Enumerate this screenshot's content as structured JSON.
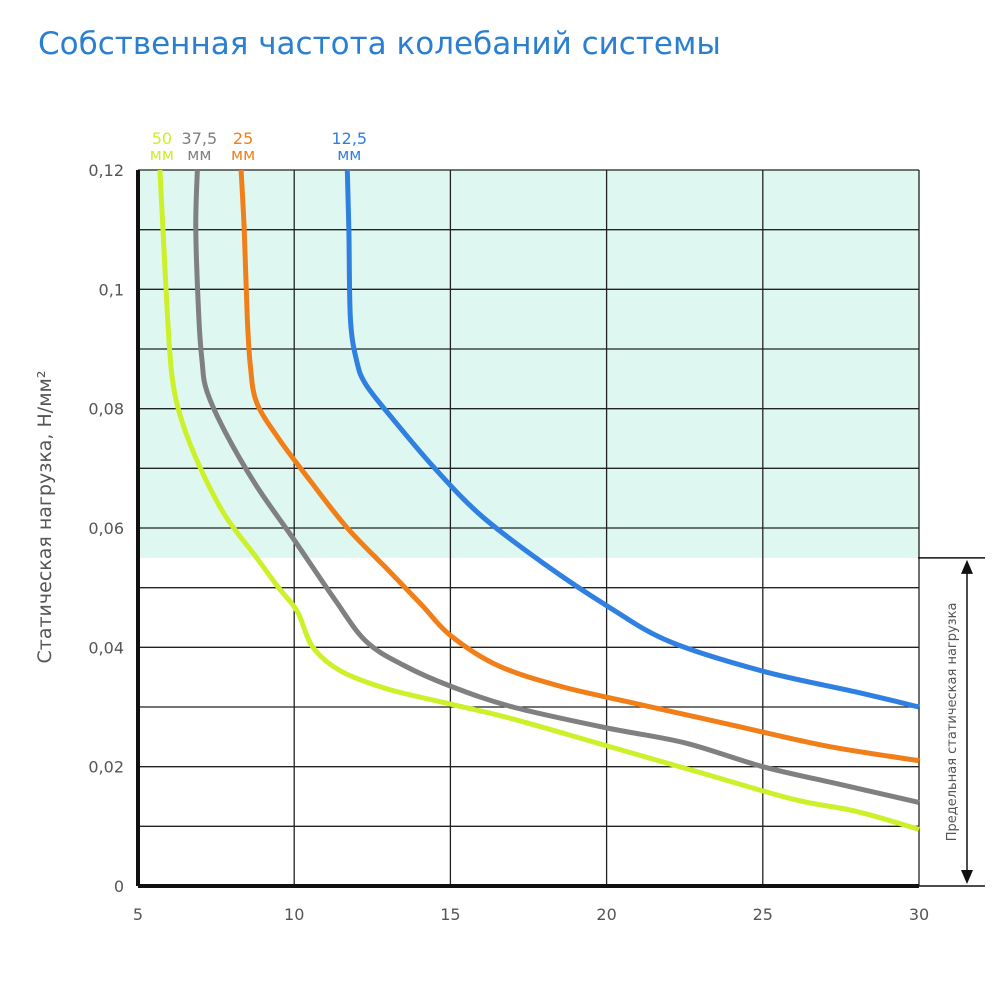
{
  "title": "Собственная частота колебаний системы",
  "colors": {
    "title": "#2a7fd0",
    "zone": "#dff7f1",
    "grid": "#222222"
  },
  "chart_data": {
    "type": "line",
    "title": "Собственная частота колебаний системы",
    "xlabel": "",
    "ylabel": "Статическая нагрузка, Н/мм²",
    "xlim": [
      5,
      30
    ],
    "ylim": [
      0,
      0.12
    ],
    "x_ticks": [
      "5",
      "10",
      "15",
      "20",
      "25",
      "30"
    ],
    "y_ticks": [
      "0",
      "0,02",
      "0,04",
      "0,06",
      "0,08",
      "0,1",
      "0,12"
    ],
    "grid": true,
    "limit_zone": {
      "label": "Предельная статическая нагрузка",
      "y_from": 0.055,
      "y_to": 0.12
    },
    "series": [
      {
        "name": "50",
        "unit": "мм",
        "color": "#ccf02a",
        "points": [
          [
            5.7,
            0.12
          ],
          [
            5.8,
            0.11
          ],
          [
            5.95,
            0.095
          ],
          [
            6.1,
            0.085
          ],
          [
            6.4,
            0.078
          ],
          [
            7.0,
            0.07
          ],
          [
            7.8,
            0.062
          ],
          [
            8.8,
            0.055
          ],
          [
            9.5,
            0.05
          ],
          [
            10.1,
            0.046
          ],
          [
            10.6,
            0.04
          ],
          [
            11.5,
            0.036
          ],
          [
            13,
            0.033
          ],
          [
            15,
            0.0305
          ],
          [
            17,
            0.028
          ],
          [
            20,
            0.0235
          ],
          [
            23,
            0.019
          ],
          [
            26,
            0.0145
          ],
          [
            28,
            0.0125
          ],
          [
            30,
            0.0095
          ]
        ]
      },
      {
        "name": "37,5",
        "unit": "мм",
        "color": "#808080",
        "points": [
          [
            6.9,
            0.12
          ],
          [
            6.85,
            0.11
          ],
          [
            6.95,
            0.095
          ],
          [
            7.05,
            0.088
          ],
          [
            7.2,
            0.083
          ],
          [
            7.8,
            0.076
          ],
          [
            8.8,
            0.067
          ],
          [
            10,
            0.058
          ],
          [
            11.3,
            0.048
          ],
          [
            12.3,
            0.041
          ],
          [
            13.5,
            0.037
          ],
          [
            15,
            0.0335
          ],
          [
            17,
            0.03
          ],
          [
            20,
            0.0265
          ],
          [
            22.5,
            0.024
          ],
          [
            25,
            0.02
          ],
          [
            27.5,
            0.017
          ],
          [
            30,
            0.014
          ]
        ]
      },
      {
        "name": "25",
        "unit": "мм",
        "color": "#f07f1a",
        "points": [
          [
            8.3,
            0.12
          ],
          [
            8.4,
            0.11
          ],
          [
            8.5,
            0.095
          ],
          [
            8.6,
            0.087
          ],
          [
            8.8,
            0.081
          ],
          [
            9.5,
            0.075
          ],
          [
            10.5,
            0.068
          ],
          [
            11.7,
            0.06
          ],
          [
            13,
            0.053
          ],
          [
            14.1,
            0.047
          ],
          [
            15,
            0.042
          ],
          [
            16.5,
            0.037
          ],
          [
            18.5,
            0.0335
          ],
          [
            21,
            0.0305
          ],
          [
            24,
            0.027
          ],
          [
            27,
            0.0235
          ],
          [
            30,
            0.021
          ]
        ]
      },
      {
        "name": "12,5",
        "unit": "мм",
        "color": "#2f80e0",
        "points": [
          [
            11.7,
            0.12
          ],
          [
            11.75,
            0.11
          ],
          [
            11.8,
            0.095
          ],
          [
            12.0,
            0.088
          ],
          [
            12.3,
            0.084
          ],
          [
            13.2,
            0.078
          ],
          [
            14.5,
            0.07
          ],
          [
            16,
            0.062
          ],
          [
            18,
            0.054
          ],
          [
            20,
            0.047
          ],
          [
            22,
            0.041
          ],
          [
            25,
            0.036
          ],
          [
            28,
            0.0325
          ],
          [
            30,
            0.03
          ]
        ]
      }
    ]
  }
}
